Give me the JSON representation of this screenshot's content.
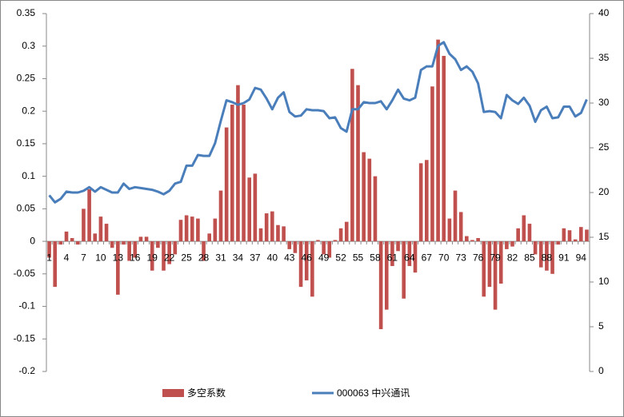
{
  "chart_data": {
    "type": "bar-line",
    "categories": [
      "1",
      null,
      null,
      "4",
      null,
      null,
      "7",
      null,
      null,
      "10",
      null,
      null,
      "13",
      null,
      null,
      "16",
      null,
      null,
      "19",
      null,
      null,
      "22",
      null,
      null,
      "25",
      null,
      null,
      "28",
      null,
      null,
      "31",
      null,
      null,
      "34",
      null,
      null,
      "37",
      null,
      null,
      "40",
      null,
      null,
      "43",
      null,
      null,
      "46",
      null,
      null,
      "49",
      null,
      null,
      "52",
      null,
      null,
      "55",
      null,
      null,
      "58",
      null,
      null,
      "61",
      null,
      null,
      "64",
      null,
      null,
      "67",
      null,
      null,
      "70",
      null,
      null,
      "73",
      null,
      null,
      "76",
      null,
      null,
      "79",
      null,
      null,
      "82",
      null,
      null,
      "85",
      null,
      null,
      "88",
      null,
      null,
      "91",
      null,
      null,
      "94",
      null
    ],
    "series": [
      {
        "name": "多空系数",
        "color": "#c0504d",
        "kind": "bar",
        "values": [
          -0.025,
          -0.07,
          -0.005,
          0.015,
          0.005,
          -0.005,
          0.05,
          0.08,
          0.012,
          0.038,
          0.027,
          -0.01,
          -0.082,
          -0.005,
          -0.03,
          -0.025,
          0.007,
          0.007,
          -0.045,
          -0.01,
          -0.045,
          -0.035,
          -0.02,
          0.033,
          0.04,
          0.038,
          0.035,
          -0.03,
          0.012,
          0.035,
          0.078,
          0.175,
          0.21,
          0.24,
          0.21,
          0.098,
          0.104,
          0.02,
          0.043,
          0.046,
          0.025,
          0.023,
          -0.012,
          -0.018,
          -0.07,
          -0.06,
          -0.085,
          0.002,
          -0.02,
          -0.025,
          0.002,
          0.02,
          0.03,
          0.265,
          0.24,
          0.137,
          0.127,
          0.1,
          -0.135,
          -0.105,
          -0.038,
          -0.015,
          -0.088,
          -0.038,
          -0.048,
          0.12,
          0.125,
          0.238,
          0.31,
          0.285,
          0.035,
          0.078,
          0.045,
          0.008,
          0.002,
          0.005,
          -0.085,
          -0.07,
          -0.105,
          -0.065,
          -0.012,
          -0.008,
          0.02,
          0.04,
          0.027,
          -0.02,
          -0.04,
          -0.045,
          -0.05,
          -0.005,
          0.02,
          0.017,
          0.003,
          0.022,
          0.018
        ]
      },
      {
        "name": "000063 中兴通讯",
        "color": "#4a7ebb",
        "kind": "line",
        "axis": "y2",
        "values": [
          19.7,
          18.9,
          19.3,
          20.1,
          20.0,
          20.0,
          20.2,
          20.6,
          20.1,
          20.6,
          20.3,
          20.0,
          20.0,
          21.0,
          20.4,
          20.6,
          20.5,
          20.4,
          20.3,
          20.1,
          19.8,
          20.2,
          21.0,
          21.2,
          23.0,
          23.0,
          24.2,
          24.1,
          24.1,
          25.5,
          28.0,
          30.3,
          30.1,
          29.8,
          30.0,
          30.4,
          31.7,
          31.5,
          30.5,
          29.3,
          30.6,
          31.2,
          29.0,
          28.5,
          28.6,
          29.3,
          29.2,
          29.2,
          29.1,
          28.3,
          28.4,
          27.2,
          26.8,
          29.3,
          29.3,
          30.1,
          30.0,
          30.0,
          30.2,
          29.3,
          30.3,
          31.5,
          30.5,
          30.3,
          30.6,
          33.7,
          34.1,
          34.1,
          36.4,
          36.8,
          35.5,
          34.9,
          33.7,
          34.1,
          33.5,
          32.2,
          29.0,
          29.1,
          29.0,
          28.3,
          30.9,
          30.3,
          29.9,
          30.6,
          29.7,
          27.9,
          29.2,
          29.6,
          28.3,
          28.4,
          29.6,
          29.6,
          28.5,
          28.9,
          30.4
        ]
      }
    ],
    "ylim": [
      -0.2,
      0.35
    ],
    "yticks": [
      -0.2,
      -0.15,
      -0.1,
      -0.05,
      0,
      0.05,
      0.1,
      0.15,
      0.2,
      0.25,
      0.3,
      0.35
    ],
    "y2lim": [
      0,
      40
    ],
    "y2ticks": [
      0,
      5,
      10,
      15,
      20,
      25,
      30,
      35,
      40
    ],
    "legend": "bottom"
  }
}
